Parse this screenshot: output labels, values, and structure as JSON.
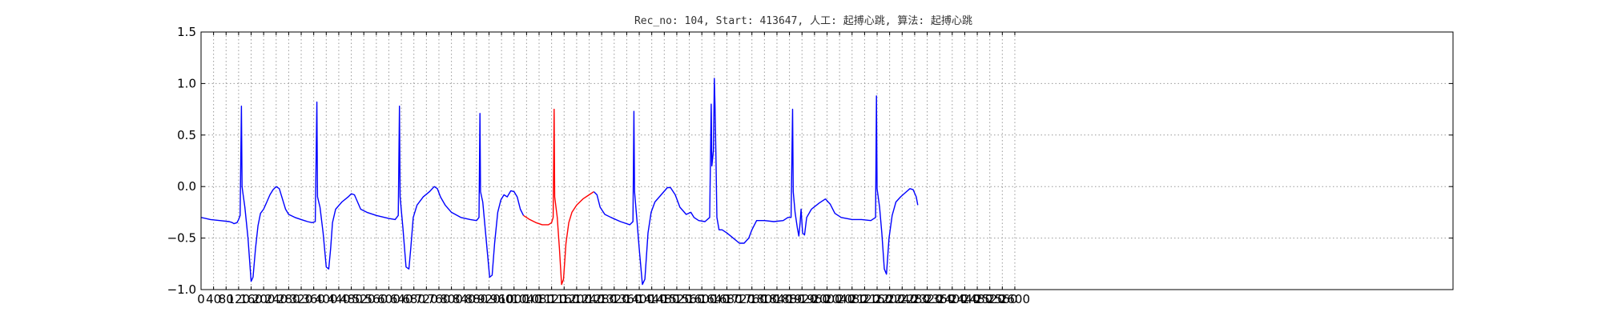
{
  "chart_data": {
    "type": "line",
    "title": "Rec_no: 104, Start: 413647, 人工: 起搏心跳, 算法: 起搏心跳",
    "xlabel": "",
    "ylabel": "",
    "xlim": [
      0,
      4000
    ],
    "ylim": [
      -1.0,
      1.5
    ],
    "grid": true,
    "y_ticks": [
      1.5,
      1.0,
      0.5,
      0.0,
      -0.5,
      -1.0
    ],
    "y_tick_labels": [
      "1.5",
      "1.0",
      "0.5",
      "0.0",
      "−0.5",
      "−1.0"
    ],
    "x_ticks": [
      0,
      40,
      80,
      120,
      160,
      200,
      240,
      280,
      320,
      360,
      400,
      440,
      480,
      520,
      560,
      600,
      640,
      680,
      720,
      760,
      800,
      840,
      880,
      920,
      960,
      1000,
      1040,
      1080,
      1120,
      1160,
      1200,
      1240,
      1280,
      1320,
      1360,
      1400,
      1440,
      1480,
      1520,
      1560,
      1600,
      1640,
      1680,
      1720,
      1760,
      1800,
      1840,
      1880,
      1920,
      1960,
      2000,
      2040,
      2080,
      2120,
      2160,
      2200,
      2240,
      2280,
      2320,
      2360,
      2400,
      2440,
      2480,
      2520,
      2560,
      2600
    ],
    "x_tick_labels": [
      "0",
      "40",
      "80",
      "120",
      "160",
      "200",
      "240",
      "280",
      "320",
      "360",
      "400",
      "440",
      "480",
      "520",
      "560",
      "600",
      "640",
      "680",
      "720",
      "760",
      "800",
      "840",
      "880",
      "920",
      "960",
      "1000",
      "1040",
      "1080",
      "1120",
      "1160",
      "1200",
      "1240",
      "1280",
      "1320",
      "1360",
      "1400",
      "1440",
      "1480",
      "1520",
      "1560",
      "1600",
      "1640",
      "1680",
      "1720",
      "1760",
      "1800",
      "1840",
      "1880",
      "1920",
      "1960",
      "2000",
      "2040",
      "2080",
      "2120",
      "2160",
      "2200",
      "2240",
      "2280",
      "2320",
      "2360",
      "2400",
      "2440",
      "2480",
      "2520",
      "2560",
      "2600"
    ],
    "series": [
      {
        "color": "#0000ff",
        "points": [
          [
            0,
            -0.3
          ],
          [
            30,
            -0.32
          ],
          [
            60,
            -0.33
          ],
          [
            90,
            -0.34
          ],
          [
            100,
            -0.35
          ],
          [
            105,
            -0.36
          ],
          [
            115,
            -0.35
          ],
          [
            120,
            -0.32
          ],
          [
            125,
            -0.28
          ],
          [
            129,
            0.78
          ],
          [
            131,
            0.0
          ],
          [
            133,
            -0.05
          ],
          [
            140,
            -0.2
          ],
          [
            150,
            -0.5
          ],
          [
            160,
            -0.92
          ],
          [
            166,
            -0.88
          ],
          [
            174,
            -0.6
          ],
          [
            182,
            -0.38
          ],
          [
            190,
            -0.26
          ],
          [
            200,
            -0.22
          ],
          [
            210,
            -0.15
          ],
          [
            220,
            -0.08
          ],
          [
            230,
            -0.03
          ],
          [
            240,
            0.0
          ],
          [
            250,
            -0.02
          ],
          [
            260,
            -0.12
          ],
          [
            270,
            -0.22
          ],
          [
            280,
            -0.27
          ],
          [
            300,
            -0.3
          ],
          [
            320,
            -0.32
          ],
          [
            340,
            -0.34
          ],
          [
            355,
            -0.35
          ],
          [
            365,
            -0.34
          ],
          [
            370,
            0.82
          ],
          [
            372,
            -0.1
          ],
          [
            380,
            -0.2
          ],
          [
            390,
            -0.45
          ],
          [
            400,
            -0.78
          ],
          [
            408,
            -0.8
          ],
          [
            414,
            -0.6
          ],
          [
            420,
            -0.35
          ],
          [
            430,
            -0.22
          ],
          [
            450,
            -0.15
          ],
          [
            470,
            -0.1
          ],
          [
            480,
            -0.07
          ],
          [
            490,
            -0.08
          ],
          [
            500,
            -0.15
          ],
          [
            510,
            -0.22
          ],
          [
            530,
            -0.25
          ],
          [
            560,
            -0.28
          ],
          [
            600,
            -0.31
          ],
          [
            620,
            -0.32
          ],
          [
            630,
            -0.28
          ],
          [
            634,
            0.78
          ],
          [
            636,
            -0.1
          ],
          [
            645,
            -0.4
          ],
          [
            655,
            -0.78
          ],
          [
            664,
            -0.8
          ],
          [
            670,
            -0.6
          ],
          [
            678,
            -0.3
          ],
          [
            690,
            -0.18
          ],
          [
            710,
            -0.1
          ],
          [
            730,
            -0.05
          ],
          [
            745,
            0.0
          ],
          [
            755,
            -0.02
          ],
          [
            765,
            -0.1
          ],
          [
            780,
            -0.18
          ],
          [
            800,
            -0.25
          ],
          [
            830,
            -0.3
          ],
          [
            860,
            -0.32
          ],
          [
            880,
            -0.33
          ],
          [
            888,
            -0.3
          ],
          [
            891,
            0.71
          ],
          [
            893,
            -0.05
          ],
          [
            900,
            -0.15
          ],
          [
            912,
            -0.55
          ],
          [
            922,
            -0.88
          ],
          [
            930,
            -0.86
          ],
          [
            938,
            -0.55
          ],
          [
            948,
            -0.25
          ],
          [
            958,
            -0.13
          ],
          [
            968,
            -0.08
          ],
          [
            978,
            -0.1
          ],
          [
            990,
            -0.04
          ],
          [
            1000,
            -0.05
          ],
          [
            1010,
            -0.1
          ],
          [
            1020,
            -0.22
          ],
          [
            1030,
            -0.28
          ]
        ]
      },
      {
        "color": "#ff0000",
        "points": [
          [
            1030,
            -0.28
          ],
          [
            1050,
            -0.32
          ],
          [
            1070,
            -0.35
          ],
          [
            1090,
            -0.37
          ],
          [
            1110,
            -0.37
          ],
          [
            1120,
            -0.35
          ],
          [
            1125,
            -0.3
          ],
          [
            1128,
            0.75
          ],
          [
            1130,
            -0.1
          ],
          [
            1138,
            -0.3
          ],
          [
            1145,
            -0.6
          ],
          [
            1152,
            -0.95
          ],
          [
            1158,
            -0.9
          ],
          [
            1166,
            -0.55
          ],
          [
            1175,
            -0.35
          ],
          [
            1185,
            -0.25
          ],
          [
            1200,
            -0.18
          ],
          [
            1220,
            -0.12
          ],
          [
            1240,
            -0.08
          ],
          [
            1255,
            -0.05
          ]
        ]
      },
      {
        "color": "#0000ff",
        "points": [
          [
            1255,
            -0.05
          ],
          [
            1265,
            -0.08
          ],
          [
            1275,
            -0.2
          ],
          [
            1290,
            -0.27
          ],
          [
            1310,
            -0.3
          ],
          [
            1340,
            -0.34
          ],
          [
            1370,
            -0.37
          ],
          [
            1380,
            -0.34
          ],
          [
            1383,
            0.73
          ],
          [
            1385,
            -0.05
          ],
          [
            1392,
            -0.3
          ],
          [
            1400,
            -0.6
          ],
          [
            1410,
            -0.95
          ],
          [
            1418,
            -0.9
          ],
          [
            1428,
            -0.45
          ],
          [
            1438,
            -0.25
          ],
          [
            1450,
            -0.15
          ],
          [
            1470,
            -0.08
          ],
          [
            1490,
            -0.01
          ],
          [
            1500,
            -0.01
          ],
          [
            1515,
            -0.08
          ],
          [
            1530,
            -0.2
          ],
          [
            1550,
            -0.27
          ],
          [
            1565,
            -0.25
          ],
          [
            1575,
            -0.3
          ],
          [
            1590,
            -0.33
          ],
          [
            1610,
            -0.34
          ],
          [
            1625,
            -0.3
          ],
          [
            1630,
            0.8
          ],
          [
            1632,
            0.2
          ],
          [
            1637,
            0.35
          ],
          [
            1640,
            1.05
          ],
          [
            1642,
            0.8
          ],
          [
            1645,
            0.3
          ],
          [
            1648,
            -0.3
          ],
          [
            1655,
            -0.42
          ],
          [
            1665,
            -0.42
          ],
          [
            1680,
            -0.45
          ],
          [
            1700,
            -0.5
          ],
          [
            1720,
            -0.55
          ],
          [
            1735,
            -0.55
          ],
          [
            1750,
            -0.5
          ],
          [
            1760,
            -0.42
          ],
          [
            1775,
            -0.33
          ],
          [
            1800,
            -0.33
          ],
          [
            1830,
            -0.34
          ],
          [
            1860,
            -0.33
          ],
          [
            1875,
            -0.3
          ],
          [
            1885,
            -0.3
          ],
          [
            1890,
            0.75
          ],
          [
            1892,
            -0.05
          ],
          [
            1898,
            -0.25
          ],
          [
            1905,
            -0.4
          ],
          [
            1910,
            -0.48
          ],
          [
            1914,
            -0.35
          ],
          [
            1917,
            -0.22
          ],
          [
            1922,
            -0.45
          ],
          [
            1928,
            -0.47
          ],
          [
            1935,
            -0.3
          ],
          [
            1950,
            -0.22
          ],
          [
            1975,
            -0.16
          ],
          [
            1995,
            -0.12
          ],
          [
            2010,
            -0.17
          ],
          [
            2025,
            -0.26
          ],
          [
            2045,
            -0.3
          ],
          [
            2080,
            -0.32
          ],
          [
            2110,
            -0.32
          ],
          [
            2140,
            -0.33
          ],
          [
            2155,
            -0.3
          ],
          [
            2158,
            0.88
          ],
          [
            2160,
            -0.02
          ],
          [
            2168,
            -0.2
          ],
          [
            2175,
            -0.45
          ],
          [
            2183,
            -0.8
          ],
          [
            2190,
            -0.85
          ],
          [
            2198,
            -0.5
          ],
          [
            2208,
            -0.28
          ],
          [
            2220,
            -0.15
          ],
          [
            2235,
            -0.1
          ],
          [
            2250,
            -0.06
          ],
          [
            2265,
            -0.02
          ],
          [
            2275,
            -0.03
          ],
          [
            2285,
            -0.1
          ],
          [
            2290,
            -0.18
          ]
        ]
      }
    ]
  }
}
